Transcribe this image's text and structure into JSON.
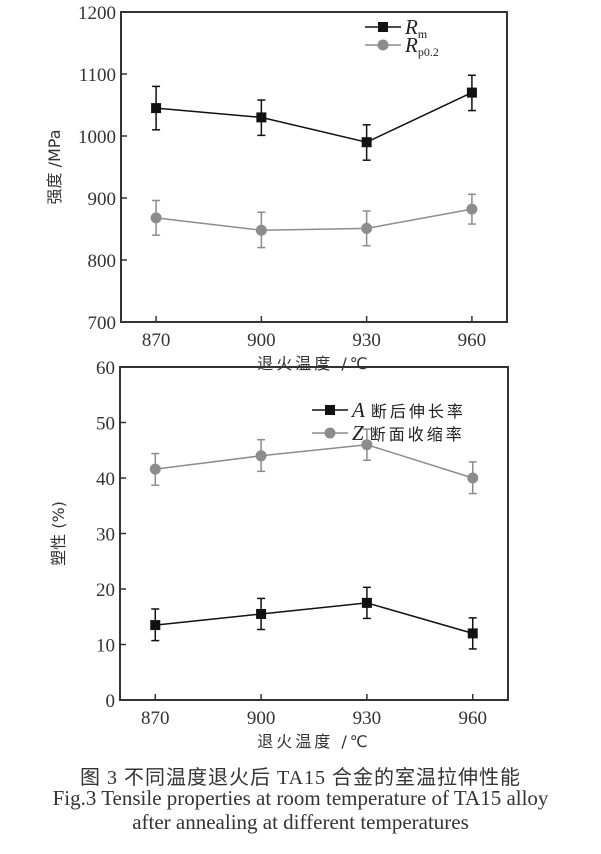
{
  "chart_data": [
    {
      "type": "line",
      "title": "",
      "xlabel": "退火温度 /℃",
      "ylabel": "强度 /MPa",
      "x": [
        870,
        900,
        930,
        960
      ],
      "xticks": [
        "870",
        "900",
        "930",
        "960"
      ],
      "xlim": [
        860,
        970
      ],
      "ylim": [
        700,
        1200
      ],
      "yticks": [
        700,
        800,
        900,
        1000,
        1100,
        1200
      ],
      "grid": false,
      "legend_position": "top-right",
      "series": [
        {
          "name": "R",
          "name_sub": "m",
          "color": "#111111",
          "marker": "square",
          "values": [
            1045,
            1030,
            990,
            1070
          ],
          "err_low": [
            1010,
            1001,
            961,
            1041
          ],
          "err_high": [
            1080,
            1058,
            1018,
            1098
          ]
        },
        {
          "name": "R",
          "name_sub": "p0.2",
          "color": "#8c8c8c",
          "marker": "circle",
          "values": [
            868,
            848,
            851,
            882
          ],
          "err_low": [
            840,
            820,
            823,
            858
          ],
          "err_high": [
            896,
            877,
            879,
            906
          ]
        }
      ]
    },
    {
      "type": "line",
      "title": "",
      "xlabel": "退火温度 /℃",
      "ylabel": "塑性 (%)",
      "x": [
        870,
        900,
        930,
        960
      ],
      "xticks": [
        "870",
        "900",
        "930",
        "960"
      ],
      "xlim": [
        860,
        970
      ],
      "ylim": [
        0,
        60
      ],
      "yticks": [
        0,
        10,
        20,
        30,
        40,
        50,
        60
      ],
      "grid": false,
      "legend_position": "top-right",
      "series": [
        {
          "name": "A",
          "name_text": "断后伸长率",
          "color": "#111111",
          "marker": "square",
          "values": [
            13.5,
            15.5,
            17.5,
            12.0
          ],
          "err_low": [
            10.7,
            12.7,
            14.7,
            9.2
          ],
          "err_high": [
            16.4,
            18.3,
            20.3,
            14.8
          ]
        },
        {
          "name": "Z",
          "name_text": "断面收缩率",
          "color": "#8c8c8c",
          "marker": "circle",
          "values": [
            41.6,
            44.0,
            46.0,
            40.0
          ],
          "err_low": [
            38.7,
            41.2,
            43.2,
            37.2
          ],
          "err_high": [
            44.4,
            46.9,
            48.8,
            42.9
          ]
        }
      ]
    }
  ],
  "caption": {
    "cn": "图 3  不同温度退火后 TA15 合金的室温拉伸性能",
    "en_line1": "Fig.3  Tensile properties at room temperature of TA15 alloy",
    "en_line2": "after annealing at different temperatures"
  }
}
